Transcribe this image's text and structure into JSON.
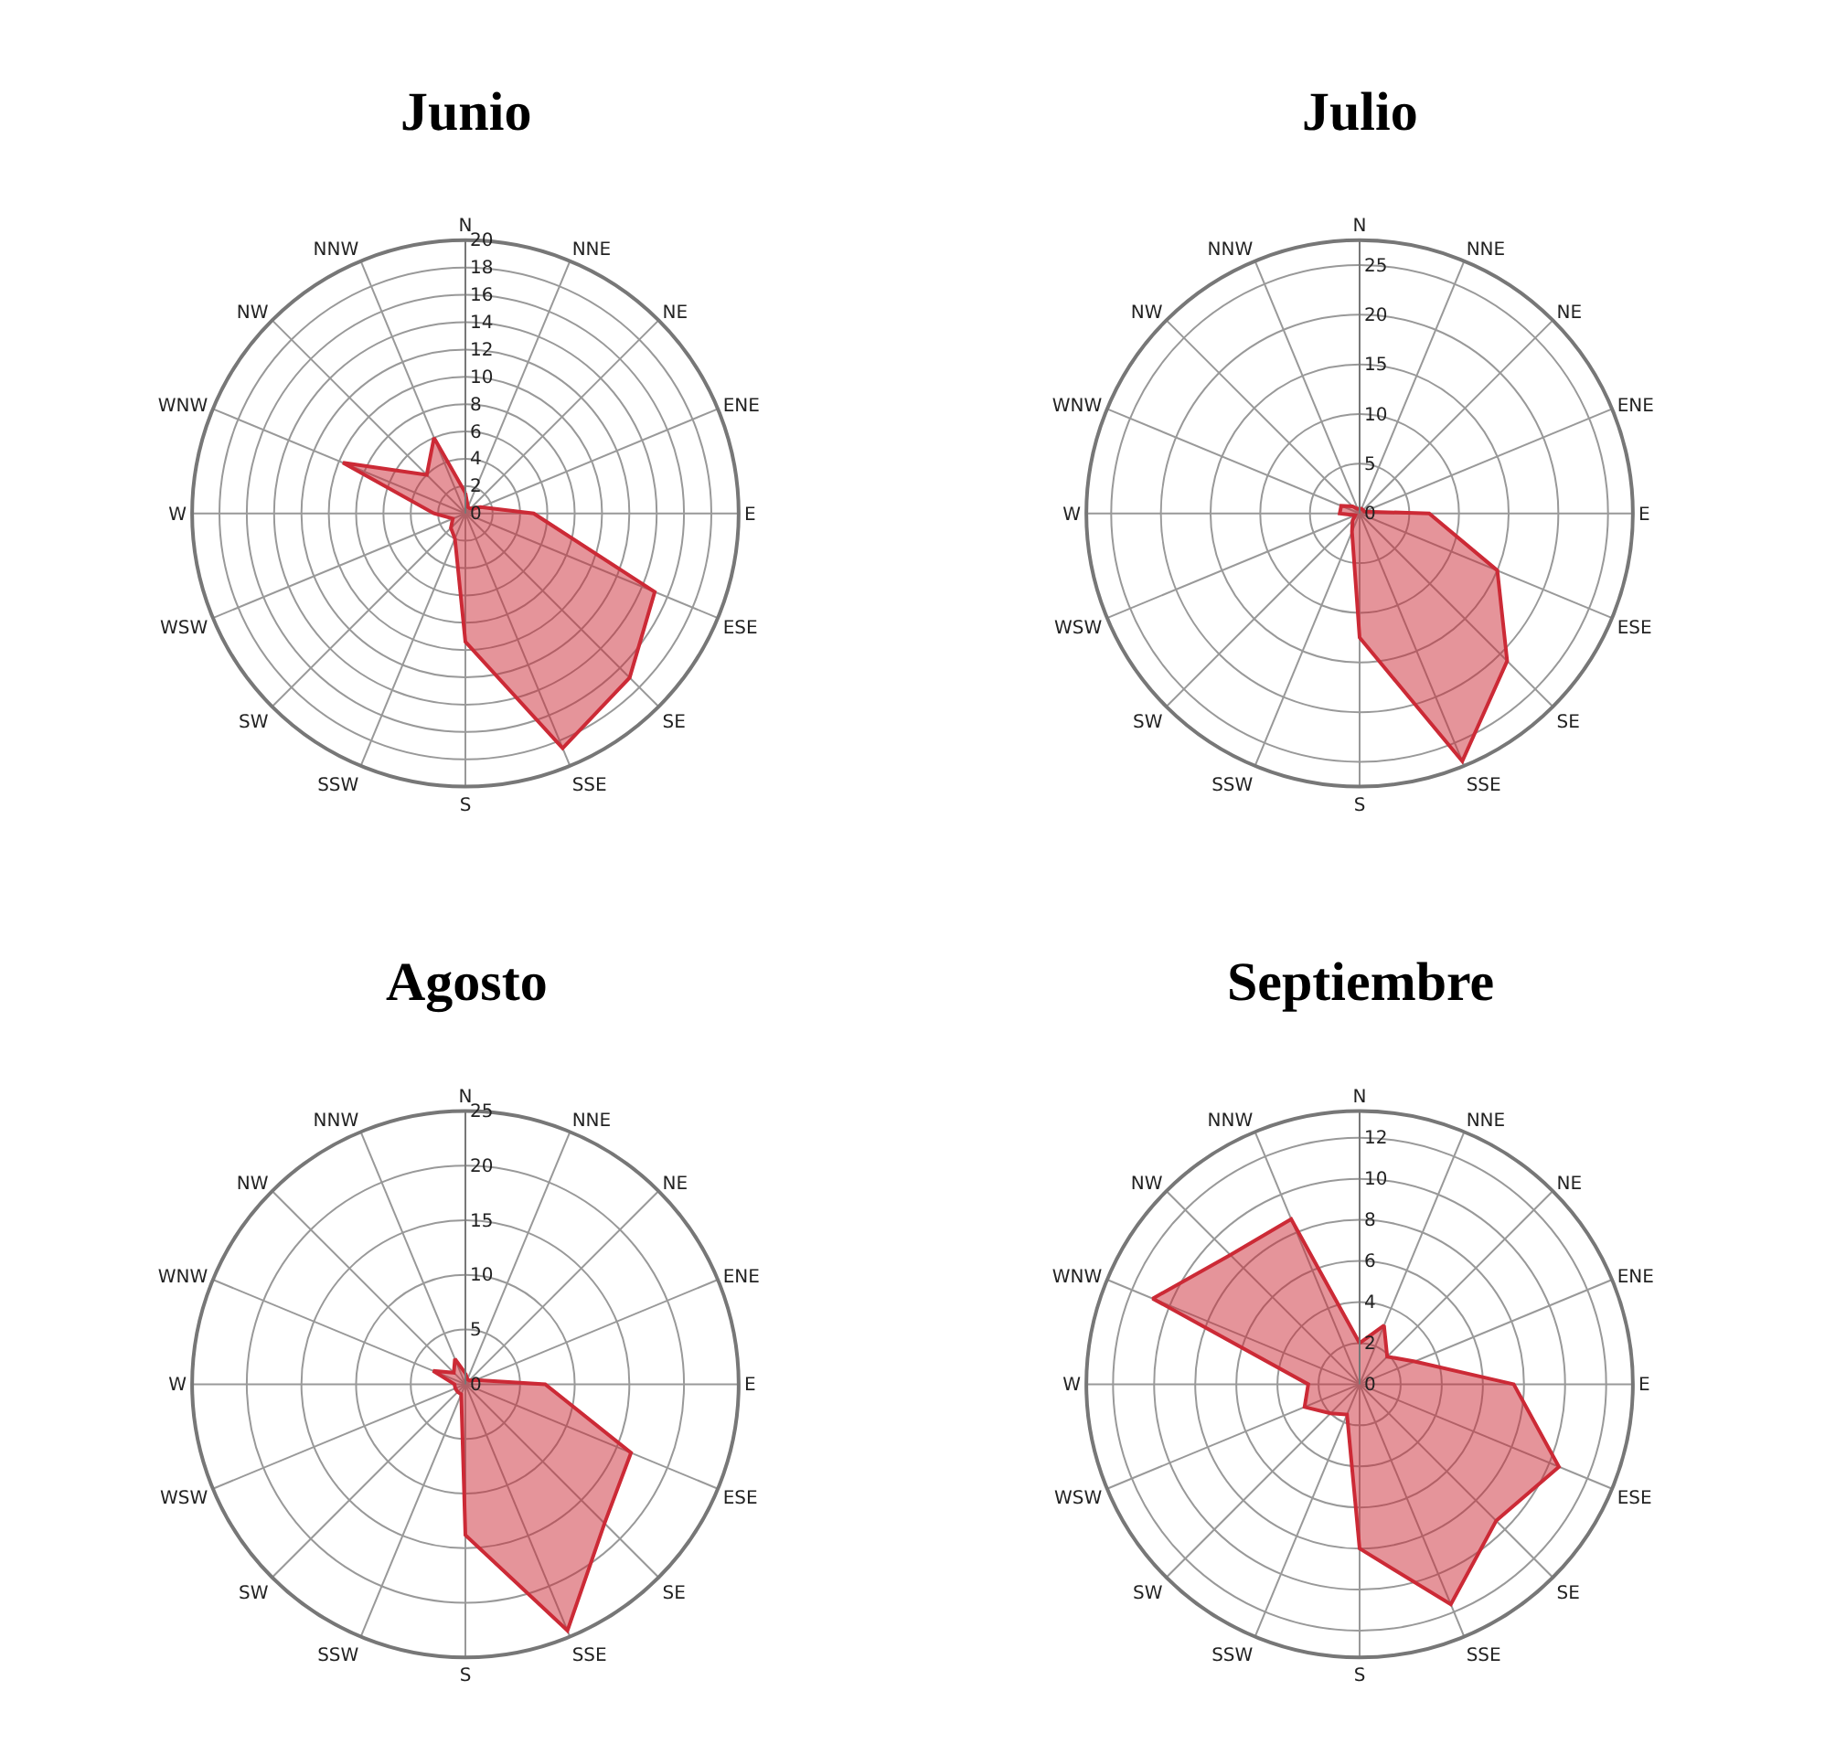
{
  "chart_data": [
    {
      "type": "radar",
      "title": "Junio",
      "categories": [
        "N",
        "NNE",
        "NE",
        "ENE",
        "E",
        "ESE",
        "SE",
        "SSE",
        "S",
        "SSW",
        "SW",
        "WSW",
        "W",
        "WNW",
        "NW",
        "NNW"
      ],
      "marker": "none",
      "grid": true,
      "ylim": [
        0,
        20
      ],
      "yticks": [
        0,
        2,
        4,
        6,
        8,
        10,
        12,
        14,
        16,
        18,
        20
      ],
      "series": [
        {
          "color": "#cc2a36",
          "values": [
            1.5,
            0.5,
            0.5,
            1.2,
            5,
            15,
            17,
            18.6,
            9.4,
            2,
            1.5,
            1,
            2.3,
            9.7,
            4,
            6
          ]
        }
      ]
    },
    {
      "type": "radar",
      "title": "Julio",
      "categories": [
        "N",
        "NNE",
        "NE",
        "ENE",
        "E",
        "ESE",
        "SE",
        "SSE",
        "S",
        "SSW",
        "SW",
        "WSW",
        "W",
        "WNW",
        "NW",
        "NNW"
      ],
      "marker": "none",
      "grid": true,
      "ylim": [
        0,
        27.5
      ],
      "yticks": [
        0,
        5,
        10,
        15,
        20,
        25
      ],
      "series": [
        {
          "color": "#cc2a36",
          "values": [
            0.5,
            0.5,
            0.5,
            0.5,
            7,
            15,
            21,
            27,
            12.5,
            2,
            1,
            0.5,
            2,
            2,
            1,
            0.5
          ]
        }
      ]
    },
    {
      "type": "radar",
      "title": "Agosto",
      "categories": [
        "N",
        "NNE",
        "NE",
        "ENE",
        "E",
        "ESE",
        "SE",
        "SSE",
        "S",
        "SSW",
        "SW",
        "WSW",
        "W",
        "WNW",
        "NW",
        "NNW"
      ],
      "marker": "none",
      "grid": true,
      "ylim": [
        0,
        25
      ],
      "yticks": [
        0,
        5,
        10,
        15,
        20,
        25
      ],
      "series": [
        {
          "color": "#cc2a36",
          "values": [
            1,
            0.5,
            0.5,
            1,
            7.3,
            16.4,
            18,
            24.4,
            13.8,
            1,
            1,
            1,
            1,
            3.2,
            1.5,
            2.5
          ]
        }
      ]
    },
    {
      "type": "radar",
      "title": "Septiembre",
      "categories": [
        "N",
        "NNE",
        "NE",
        "ENE",
        "E",
        "ESE",
        "SE",
        "SSE",
        "S",
        "SSW",
        "SW",
        "WSW",
        "W",
        "WNW",
        "NW",
        "NNW"
      ],
      "marker": "none",
      "grid": true,
      "ylim": [
        0,
        13.3
      ],
      "yticks": [
        0,
        2,
        4,
        6,
        8,
        10,
        12
      ],
      "series": [
        {
          "color": "#cc2a36",
          "values": [
            2,
            3.1,
            1.9,
            2.9,
            7.5,
            10.5,
            9.4,
            11.6,
            8,
            1.6,
            2,
            2.9,
            2.5,
            10.9,
            8.9,
            8.7
          ]
        }
      ]
    }
  ]
}
